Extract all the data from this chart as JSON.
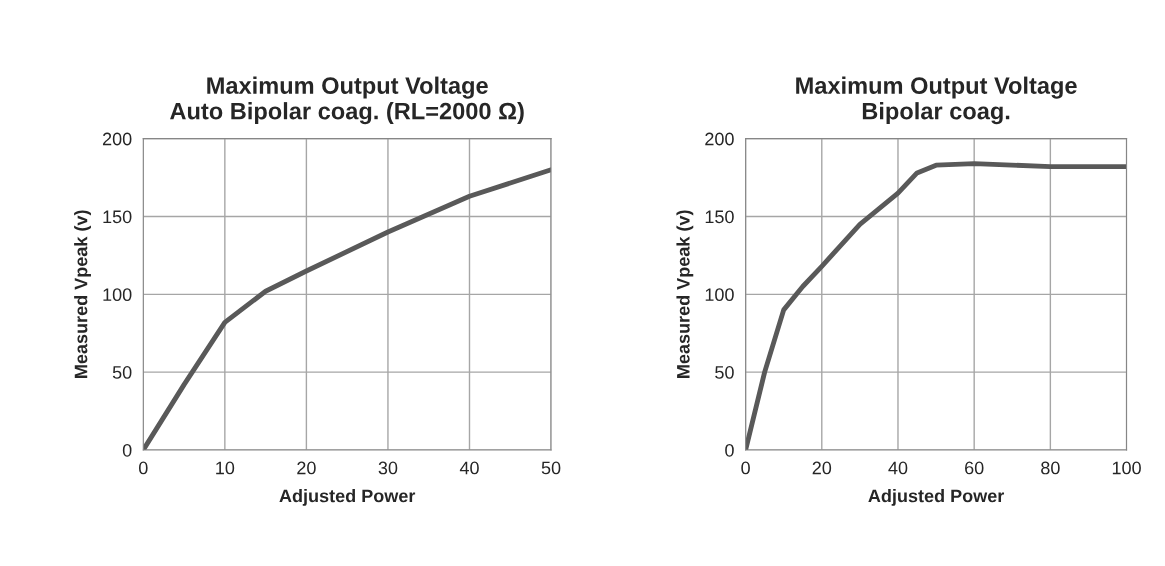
{
  "chart_data": [
    {
      "type": "line",
      "title": "Maximum Output Voltage\nAuto Bipolar coag. (RL=2000 Ω)",
      "xlabel": "Adjusted Power",
      "ylabel": "Measured Vpeak (v)",
      "x": [
        0,
        5,
        10,
        15,
        20,
        30,
        40,
        50
      ],
      "series": [
        {
          "color": "#595959",
          "values": [
            0,
            42,
            82,
            102,
            115,
            140,
            163,
            180
          ]
        }
      ],
      "xlim": [
        0,
        50
      ],
      "xticks": [
        0,
        10,
        20,
        30,
        40,
        50
      ],
      "ylim": [
        0,
        200
      ],
      "yticks": [
        0,
        50,
        100,
        150,
        200
      ],
      "grid": true
    },
    {
      "type": "line",
      "title": "Maximum Output Voltage\nBipolar coag.",
      "xlabel": "Adjusted Power",
      "ylabel": "Measured Vpeak (v)",
      "x": [
        0,
        5,
        10,
        15,
        20,
        30,
        40,
        45,
        50,
        60,
        80,
        100
      ],
      "series": [
        {
          "color": "#595959",
          "values": [
            0,
            50,
            90,
            105,
            118,
            145,
            165,
            178,
            183,
            184,
            182,
            182
          ]
        }
      ],
      "xlim": [
        0,
        100
      ],
      "xticks": [
        0,
        20,
        40,
        60,
        80,
        100
      ],
      "ylim": [
        0,
        200
      ],
      "yticks": [
        0,
        50,
        100,
        150,
        200
      ],
      "grid": true
    }
  ]
}
